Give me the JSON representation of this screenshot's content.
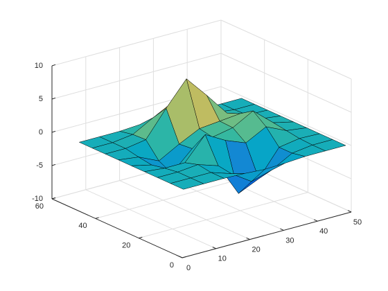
{
  "chart_data": {
    "type": "surface",
    "x": [
      1,
      7,
      13,
      19,
      25,
      31,
      37,
      43,
      49
    ],
    "y": [
      1,
      7,
      13,
      19,
      25,
      31,
      37,
      43,
      49
    ],
    "z": [
      [
        0,
        0,
        0,
        -0.1,
        -0.3,
        -0.2,
        0,
        0,
        0
      ],
      [
        0,
        0,
        0,
        -1.0,
        -3.0,
        -2.1,
        -0.4,
        0,
        0
      ],
      [
        0,
        0,
        0.3,
        -0.7,
        -5.7,
        -4.3,
        -0.4,
        0.1,
        0
      ],
      [
        0,
        -0.3,
        -0.3,
        3.1,
        1.4,
        0.2,
        1.8,
        0.4,
        0
      ],
      [
        0,
        -0.7,
        -2.8,
        0.1,
        1.0,
        1.6,
        3.3,
        0.7,
        0
      ],
      [
        0,
        -0.4,
        -1.8,
        -0.1,
        1.4,
        1.7,
        2.0,
        0.4,
        0
      ],
      [
        0,
        0,
        0.5,
        4.4,
        8.0,
        4.7,
        1.2,
        0.1,
        0
      ],
      [
        0,
        0,
        0.4,
        2.1,
        3.7,
        2.1,
        0.4,
        0,
        0
      ],
      [
        0,
        0,
        0,
        0.2,
        0.3,
        0.2,
        0,
        0,
        0
      ]
    ],
    "xlim": [
      0,
      50
    ],
    "ylim": [
      0,
      60
    ],
    "zlim": [
      -10,
      10
    ],
    "xticks": [
      0,
      10,
      20,
      30,
      40,
      50
    ],
    "yticks": [
      0,
      20,
      40,
      60
    ],
    "zticks": [
      -10,
      -5,
      0,
      5,
      10
    ],
    "grid": true,
    "colormap": [
      "#352a87",
      "#0363e1",
      "#1485d4",
      "#06a7c6",
      "#38b99e",
      "#92bf73",
      "#d9ba56",
      "#fcce2e",
      "#f9fb0e"
    ]
  }
}
